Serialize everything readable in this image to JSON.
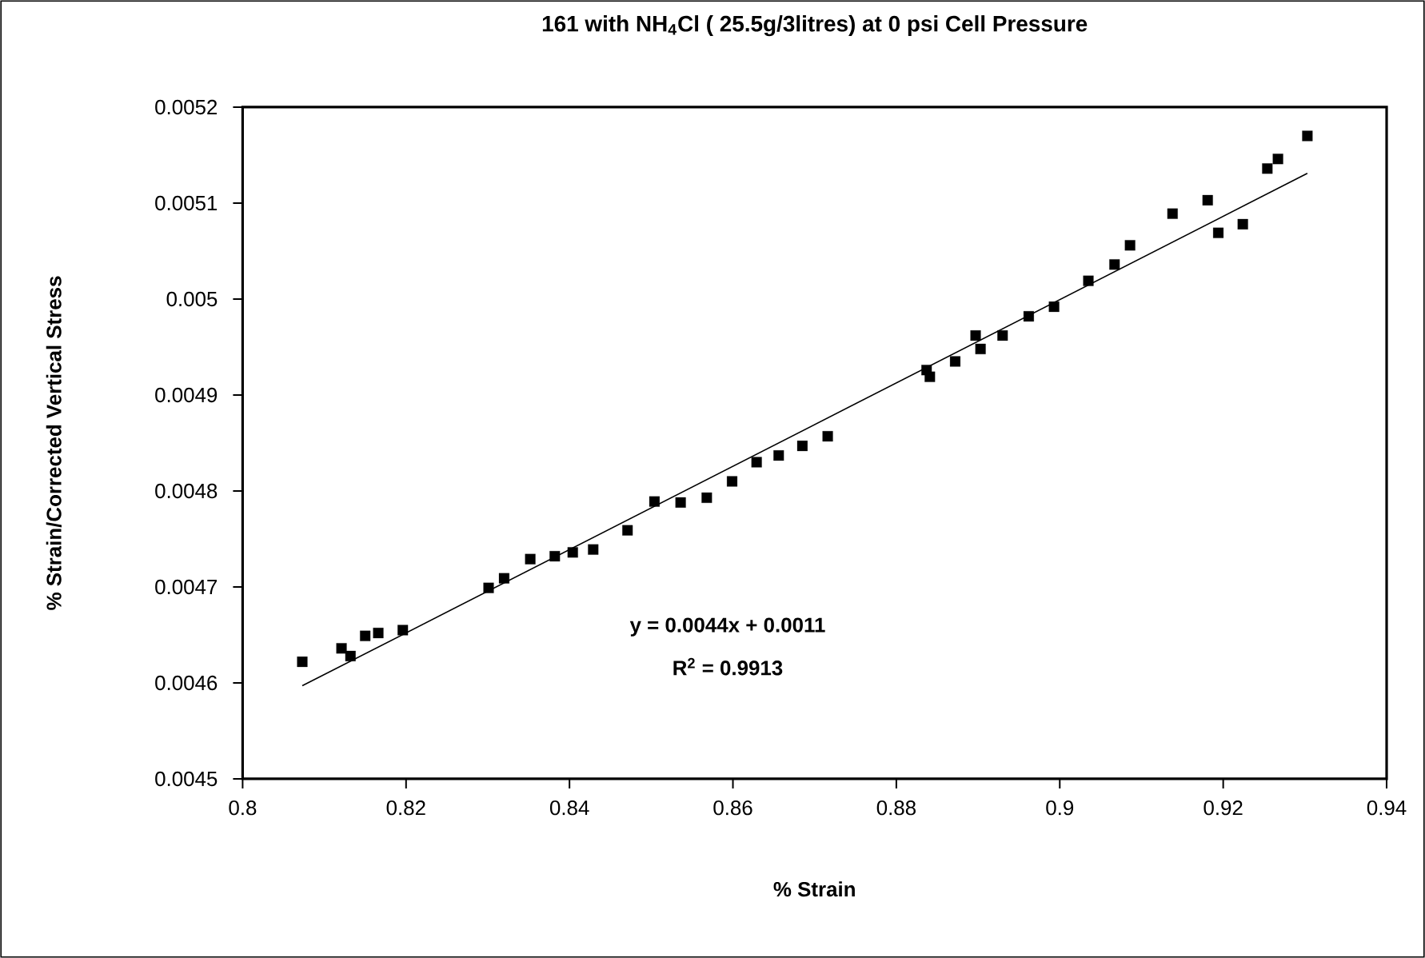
{
  "chart_data": {
    "type": "scatter",
    "title": "161 with NH$_{4}$Cl ( 25.5g/3litres) at 0 psi Cell Pressure",
    "xlabel": "% Strain",
    "ylabel": "% Strain/Corrected Vertical Stress",
    "annotations": [
      "y = 0.0044x + 0.0011",
      "R$^{2}$ = 0.9913"
    ],
    "series": [
      {
        "color": "#000000",
        "marker": "square",
        "x": [
          0.8073,
          0.8121,
          0.8132,
          0.815,
          0.8166,
          0.8196,
          0.8301,
          0.832,
          0.8352,
          0.8382,
          0.8404,
          0.8429,
          0.8471,
          0.8504,
          0.8536,
          0.8568,
          0.8599,
          0.8629,
          0.8656,
          0.8685,
          0.8716,
          0.8837,
          0.8841,
          0.8872,
          0.8897,
          0.8903,
          0.893,
          0.8962,
          0.8993,
          0.9035,
          0.9067,
          0.9086,
          0.9138,
          0.9181,
          0.9194,
          0.9224,
          0.9254,
          0.9267,
          0.9303
        ],
        "values": [
          0.004622,
          0.004636,
          0.004628,
          0.004649,
          0.004652,
          0.004655,
          0.004699,
          0.004709,
          0.004729,
          0.004732,
          0.004736,
          0.004739,
          0.004759,
          0.004789,
          0.004788,
          0.004793,
          0.00481,
          0.00483,
          0.004837,
          0.004847,
          0.004857,
          0.004926,
          0.004919,
          0.004935,
          0.004962,
          0.004948,
          0.004962,
          0.004982,
          0.004992,
          0.005019,
          0.005036,
          0.005056,
          0.005089,
          0.005103,
          0.005069,
          0.005078,
          0.005136,
          0.005146,
          0.00517
        ]
      },
      {
        "type": "line",
        "color": "#000000",
        "marker": "none",
        "x": [
          0.8073,
          0.9303
        ],
        "values": [
          0.004597,
          0.005131
        ]
      }
    ],
    "xlim": [
      0.8,
      0.94
    ],
    "xticks": [
      0.8,
      0.82,
      0.84,
      0.86,
      0.88,
      0.9,
      0.92,
      0.94
    ],
    "ylim": [
      0.0045,
      0.0052
    ],
    "yticks": [
      0.0045,
      0.0046,
      0.0047,
      0.0048,
      0.0049,
      0.005,
      0.0051,
      0.0052
    ]
  }
}
